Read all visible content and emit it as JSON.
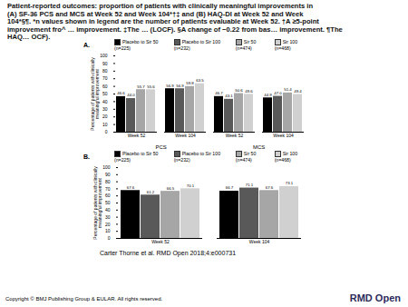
{
  "title_lines": [
    "Patient-reported outcomes: proportion of patients with clinically meaningful improvements in",
    "(A) SF-36 PCS and MCS at Week 52 and Week 104*†‡ and (B) HAQ-DI at Week 52 and Week",
    "104*§¶. *n values shown in legend are the number of patients evaluable at Week 52. †A ≥5-point",
    "improvement fro^ … improvement. ‡The … (LOCF). §A change of −0.22 from bas… improvement. ¶The",
    "HAQ… OCF)."
  ],
  "chart_data": [
    {
      "type": "bar",
      "panel_label": "A.",
      "y_label": "Percentage of patients with clinically meaningful improvement",
      "categories": [
        "Week 52",
        "Week 104",
        "Week 52",
        "Week 104"
      ],
      "category_groups": [
        "PCS",
        "PCS",
        "MCS",
        "MCS"
      ],
      "series": [
        {
          "name": "Placebo to Sir 50 (n=225)",
          "color": "#000000",
          "values": [
            46.6,
            56.9,
            46.7,
            44.9
          ],
          "value_labels": [
            "46.6",
            "56.9",
            "46.7",
            "44.9"
          ]
        },
        {
          "name": "Placebo to Sir 100 (n=232)",
          "color": "#595959",
          "values": [
            44.0,
            56.9,
            43.1,
            47.0
          ],
          "value_labels": [
            "44.0",
            "56.9",
            "43.1",
            "47.0"
          ]
        },
        {
          "name": "Sir 50 (n=474)",
          "color": "#a6a6a6",
          "values": [
            55.7,
            59.8,
            50.6,
            51.4
          ],
          "value_labels": [
            "55.7",
            "59.8",
            "50.6",
            "51.4"
          ]
        },
        {
          "name": "Sir 100 (n=468)",
          "color": "#d0d0d0",
          "values": [
            55.6,
            63.5,
            49.6,
            49.4
          ],
          "value_labels": [
            "55.6",
            "63.5",
            "49.6",
            "49.4"
          ]
        }
      ],
      "ylim": [
        0,
        100
      ],
      "yticks": [
        0,
        10,
        20,
        30,
        40,
        50,
        60,
        70,
        80,
        90,
        100
      ],
      "data_labels": true,
      "grid": false
    },
    {
      "type": "bar",
      "panel_label": "B.",
      "y_label": "Percentage of patients with clinically meaningful improvement",
      "categories": [
        "Week 52",
        "Week 104"
      ],
      "series": [
        {
          "name": "Placebo to Sir 50 (n=225)",
          "color": "#000000",
          "values": [
            67.6,
            66.7
          ]
        },
        {
          "name": "Placebo to Sir 100 (n=232)",
          "color": "#595959",
          "values": [
            61.2,
            71.1
          ]
        },
        {
          "name": "Sir 50 (n=474)",
          "color": "#a6a6a6",
          "values": [
            66.5,
            67.6
          ]
        },
        {
          "name": "Sir 100 (n=468)",
          "color": "#d0d0d0",
          "values": [
            70.1,
            73.1
          ]
        }
      ],
      "ylim": [
        0,
        100
      ],
      "yticks": [
        0,
        10,
        20,
        30,
        40,
        50,
        60,
        70,
        80,
        90,
        100
      ],
      "data_labels": true,
      "grid": false
    }
  ],
  "citation": "Carter Thorne et al. RMD Open 2018;4:e000731",
  "copyright": "Copyright © BMJ Publishing Group & EULAR. All rights reserved.",
  "logo": "RMD Open"
}
